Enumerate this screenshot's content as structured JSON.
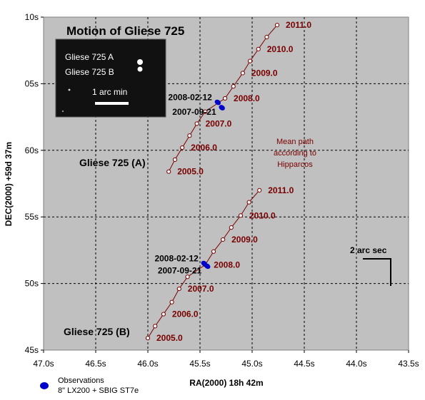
{
  "chart_data": {
    "type": "line",
    "title": "Motion of Gliese 725",
    "xlabel": "RA(2000) 18h 42m",
    "ylabel": "DEC(2000) +59d 37m",
    "x_reversed": true,
    "xlim": [
      47.0,
      43.5
    ],
    "ylim": [
      45,
      70
    ],
    "x_ticks": [
      47.0,
      46.5,
      46.0,
      45.5,
      45.0,
      44.5,
      44.0,
      43.5
    ],
    "x_tick_labels": [
      "47.0s",
      "46.5s",
      "46.0s",
      "45.5s",
      "45.0s",
      "44.5s",
      "44.0s",
      "43.5s"
    ],
    "y_ticks": [
      45,
      50,
      55,
      60,
      65,
      70
    ],
    "y_tick_labels": [
      "45s",
      "50s",
      "55s",
      "60s",
      "05s",
      "10s"
    ],
    "grid": true,
    "plot_background": "#c0c0c0",
    "path_color": "#7a0000",
    "observation_color": "#0000cc",
    "series": [
      {
        "name": "Gliese 725 (A)",
        "points": [
          {
            "ra": 45.8,
            "dec": 58.4,
            "year": "2005.0"
          },
          {
            "ra": 45.74,
            "dec": 59.3,
            "year": ""
          },
          {
            "ra": 45.67,
            "dec": 60.2,
            "year": "2006.0"
          },
          {
            "ra": 45.6,
            "dec": 61.1,
            "year": ""
          },
          {
            "ra": 45.53,
            "dec": 62.0,
            "year": "2007.0"
          },
          {
            "ra": 45.45,
            "dec": 62.9,
            "year": ""
          },
          {
            "ra": 45.26,
            "dec": 63.9,
            "year": "2008.0"
          },
          {
            "ra": 45.18,
            "dec": 64.8,
            "year": ""
          },
          {
            "ra": 45.09,
            "dec": 65.8,
            "year": "2009.0"
          },
          {
            "ra": 45.02,
            "dec": 66.7,
            "year": ""
          },
          {
            "ra": 44.94,
            "dec": 67.6,
            "year": "2010.0"
          },
          {
            "ra": 44.86,
            "dec": 68.5,
            "year": ""
          },
          {
            "ra": 44.76,
            "dec": 69.4,
            "year": "2011.0"
          }
        ],
        "observations": [
          {
            "ra": 45.33,
            "dec": 63.6,
            "date": "2008-02-12"
          },
          {
            "ra": 45.29,
            "dec": 63.2,
            "date": "2007-09-21"
          }
        ]
      },
      {
        "name": "Gliese 725 (B)",
        "points": [
          {
            "ra": 46.0,
            "dec": 45.9,
            "year": "2005.0"
          },
          {
            "ra": 45.93,
            "dec": 46.8,
            "year": ""
          },
          {
            "ra": 45.85,
            "dec": 47.7,
            "year": "2006.0"
          },
          {
            "ra": 45.77,
            "dec": 48.6,
            "year": ""
          },
          {
            "ra": 45.7,
            "dec": 49.6,
            "year": "2007.0"
          },
          {
            "ra": 45.62,
            "dec": 50.5,
            "year": ""
          },
          {
            "ra": 45.45,
            "dec": 51.4,
            "year": "2008.0"
          },
          {
            "ra": 45.37,
            "dec": 52.4,
            "year": ""
          },
          {
            "ra": 45.28,
            "dec": 53.3,
            "year": "2009.0"
          },
          {
            "ra": 45.2,
            "dec": 54.2,
            "year": ""
          },
          {
            "ra": 45.11,
            "dec": 55.1,
            "year": "2010.0"
          },
          {
            "ra": 45.03,
            "dec": 56.1,
            "year": ""
          },
          {
            "ra": 44.93,
            "dec": 57.0,
            "year": "2011.0"
          }
        ],
        "observations": [
          {
            "ra": 45.46,
            "dec": 51.5,
            "date": "2008-02-12"
          },
          {
            "ra": 45.43,
            "dec": 51.3,
            "date": "2007-09-21"
          }
        ]
      }
    ],
    "annotations": {
      "mean_path": [
        "Mean path",
        "according to",
        "Hipparcos"
      ],
      "scale_bar": "2 arc sec",
      "inset_labels": [
        "Gliese 725 A",
        "Gliese 725 B"
      ],
      "inset_scale": "1 arc min"
    },
    "legend": {
      "position": "bottom-left",
      "lines": [
        "Observations",
        "8\" LX200 + SBIG ST7e"
      ]
    }
  }
}
